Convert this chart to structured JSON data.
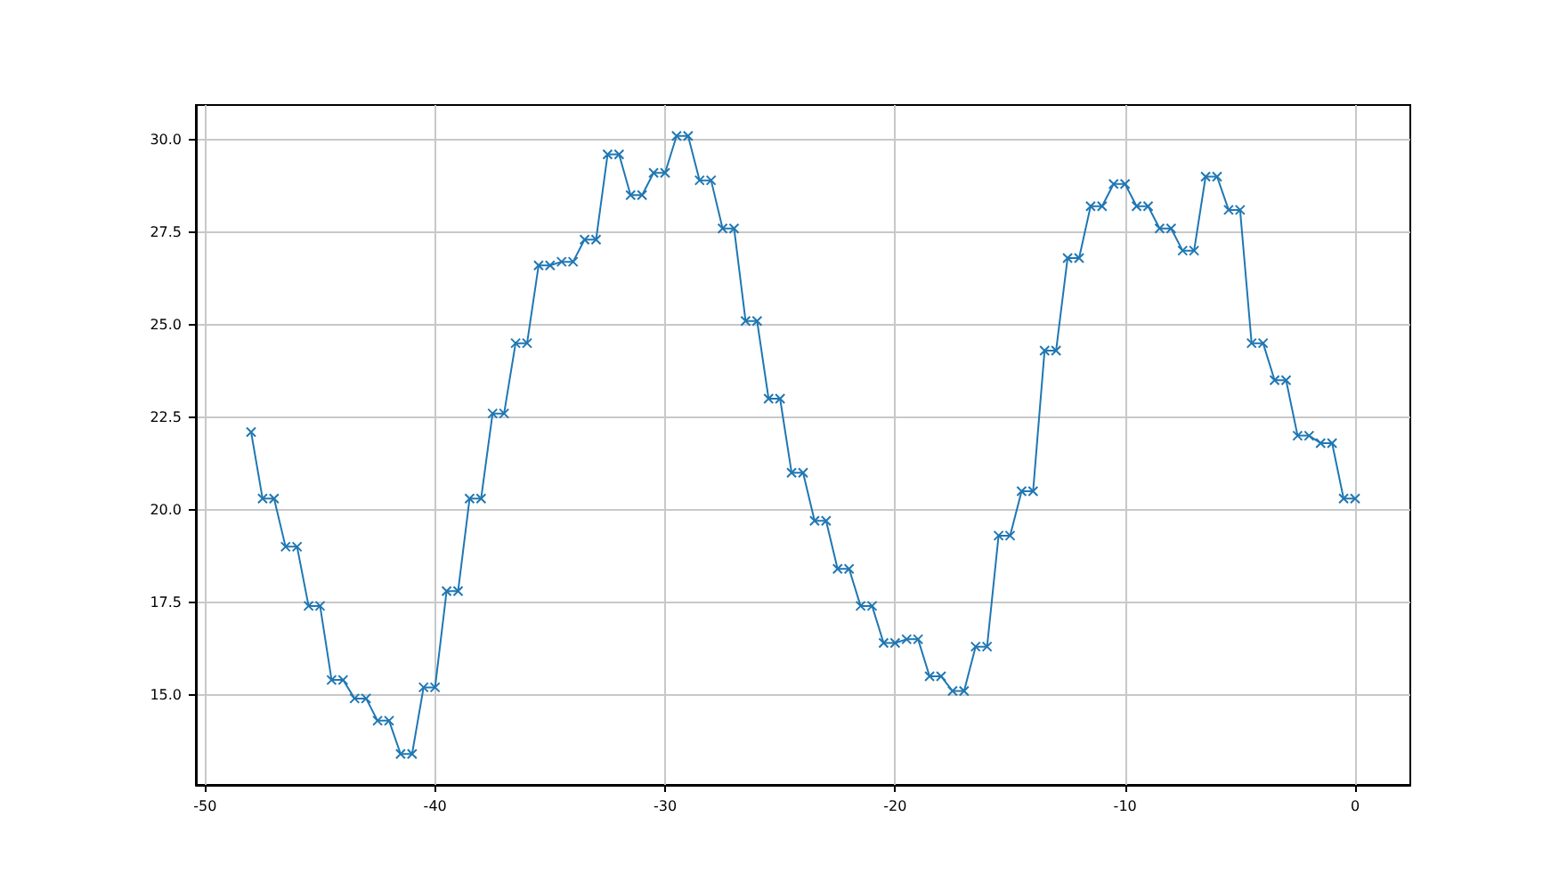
{
  "chart_data": {
    "type": "line",
    "color": "#1f77b4",
    "marker": "cross",
    "line_style": "solid",
    "grid": true,
    "x": [
      -48,
      -47.5,
      -47,
      -46.5,
      -46,
      -45.5,
      -45,
      -44.5,
      -44,
      -43.5,
      -43,
      -42.5,
      -42,
      -41.5,
      -41,
      -40.5,
      -40,
      -39.5,
      -39,
      -38.5,
      -38,
      -37.5,
      -37,
      -36.5,
      -36,
      -35.5,
      -35,
      -34.5,
      -34,
      -33.5,
      -33,
      -32.5,
      -32,
      -31.5,
      -31,
      -30.5,
      -30,
      -29.5,
      -29,
      -28.5,
      -28,
      -27.5,
      -27,
      -26.5,
      -26,
      -25.5,
      -25,
      -24.5,
      -24,
      -23.5,
      -23,
      -22.5,
      -22,
      -21.5,
      -21,
      -20.5,
      -20,
      -19.5,
      -19,
      -18.5,
      -18,
      -17.5,
      -17,
      -16.5,
      -16,
      -15.5,
      -15,
      -14.5,
      -14,
      -13.5,
      -13,
      -12.5,
      -12,
      -11.5,
      -11,
      -10.5,
      -10,
      -9.5,
      -9,
      -8.5,
      -8,
      -7.5,
      -7,
      -6.5,
      -6,
      -5.5,
      -5,
      -4.5,
      -4,
      -3.5,
      -3,
      -2.5,
      -2,
      -1.5,
      -1,
      -0.5,
      0
    ],
    "values": [
      22.1,
      20.3,
      20.3,
      19.0,
      19.0,
      17.4,
      17.4,
      15.4,
      15.4,
      14.9,
      14.9,
      14.3,
      14.3,
      13.4,
      13.4,
      15.2,
      15.2,
      17.8,
      17.8,
      20.3,
      20.3,
      22.6,
      22.6,
      24.5,
      24.5,
      26.6,
      26.6,
      26.7,
      26.7,
      27.3,
      27.3,
      29.6,
      29.6,
      28.5,
      28.5,
      29.1,
      29.1,
      30.1,
      30.1,
      28.9,
      28.9,
      27.6,
      27.6,
      25.1,
      25.1,
      23.0,
      23.0,
      21.0,
      21.0,
      19.7,
      19.7,
      18.4,
      18.4,
      17.4,
      17.4,
      16.4,
      16.4,
      16.5,
      16.5,
      15.5,
      15.5,
      15.1,
      15.1,
      16.3,
      16.3,
      19.3,
      19.3,
      20.5,
      20.5,
      24.3,
      24.3,
      26.8,
      26.8,
      28.2,
      28.2,
      28.8,
      28.8,
      28.2,
      28.2,
      27.6,
      27.6,
      27.0,
      27.0,
      29.0,
      29.0,
      28.1,
      28.1,
      24.5,
      24.5,
      23.5,
      23.5,
      22.0,
      22.0,
      21.8,
      21.8,
      20.3,
      20.3
    ],
    "xlim": [
      -50.4,
      2.4
    ],
    "xticks": [
      -50,
      -40,
      -30,
      -20,
      -10,
      0
    ],
    "ylim": [
      12.565,
      30.935
    ],
    "yticks": [
      {
        "value": 15,
        "label": "15.0"
      },
      {
        "value": 17.5,
        "label": "17.5"
      },
      {
        "value": 20,
        "label": "20.0"
      },
      {
        "value": 22.5,
        "label": "22.5"
      },
      {
        "value": 25,
        "label": "25.0"
      },
      {
        "value": 27.5,
        "label": "27.5"
      },
      {
        "value": 30,
        "label": "30.0"
      }
    ]
  }
}
